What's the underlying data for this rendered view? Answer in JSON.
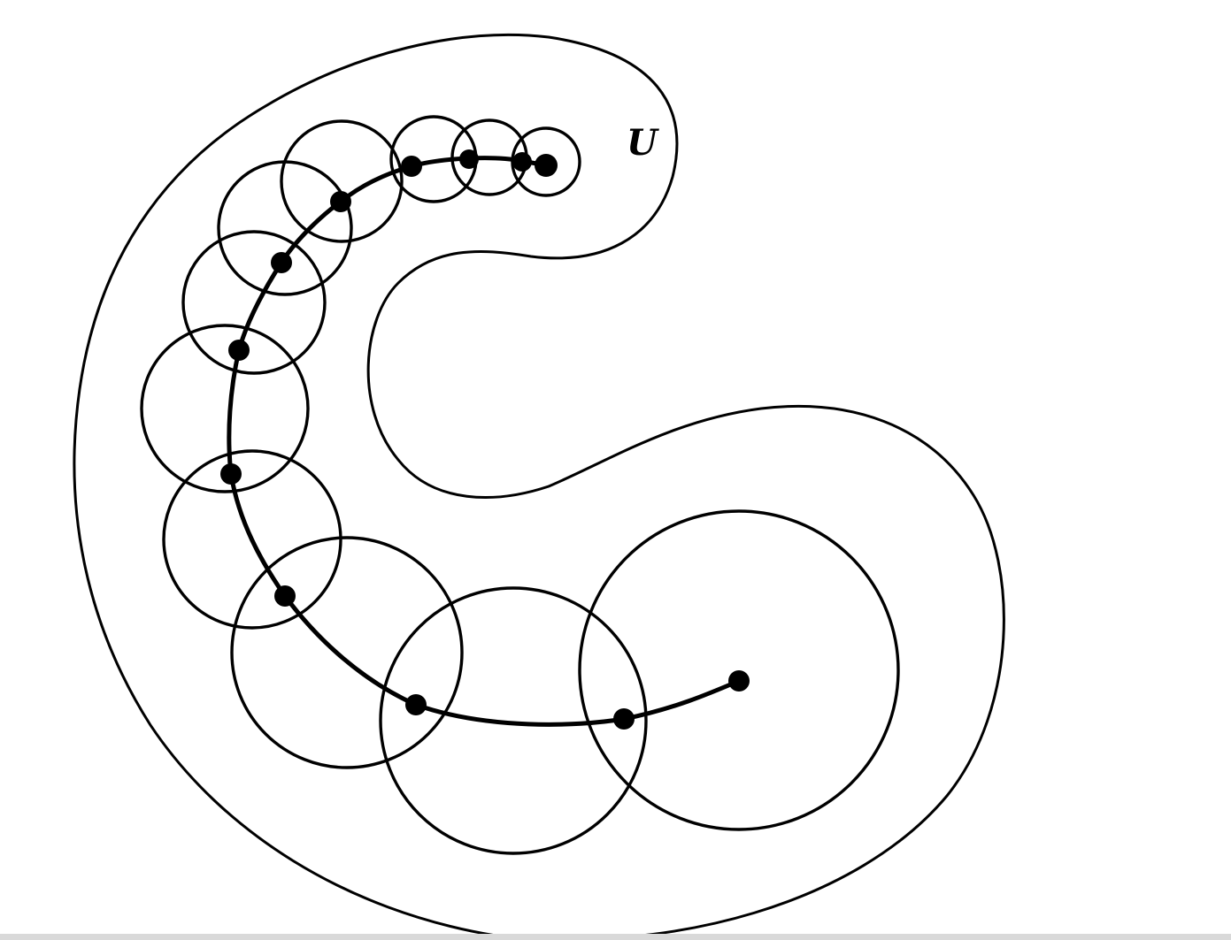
{
  "diagram": {
    "region_label": "U",
    "colors": {
      "ink": "#000000",
      "background": "#ffffff",
      "bottom_strip": "#d9d9d9"
    }
  }
}
